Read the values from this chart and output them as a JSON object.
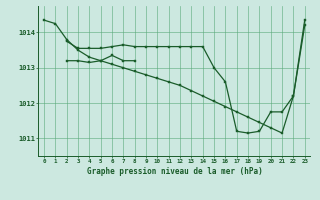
{
  "bg_color": "#cce8e0",
  "grid_color": "#5aaa7a",
  "line_color": "#1a5c2a",
  "xlabel": "Graphe pression niveau de la mer (hPa)",
  "ylim": [
    1010.5,
    1014.75
  ],
  "xlim": [
    -0.5,
    23.5
  ],
  "yticks": [
    1011,
    1012,
    1013,
    1014
  ],
  "xticks": [
    0,
    1,
    2,
    3,
    4,
    5,
    6,
    7,
    8,
    9,
    10,
    11,
    12,
    13,
    14,
    15,
    16,
    17,
    18,
    19,
    20,
    21,
    22,
    23
  ],
  "line1_x": [
    0,
    1,
    2,
    3,
    4,
    5,
    6,
    7,
    8,
    9,
    10,
    11,
    12,
    13,
    14,
    15,
    16,
    17,
    18,
    19,
    20,
    21,
    22,
    23
  ],
  "line1_y": [
    1014.35,
    1014.25,
    1013.8,
    1013.5,
    1013.3,
    1013.2,
    1013.1,
    1013.0,
    1012.9,
    1012.8,
    1012.7,
    1012.6,
    1012.5,
    1012.35,
    1012.2,
    1012.05,
    1011.9,
    1011.75,
    1011.6,
    1011.45,
    1011.3,
    1011.15,
    1012.2,
    1014.35
  ],
  "line2_x": [
    2,
    3,
    4,
    5,
    6,
    7,
    8,
    9,
    10,
    11,
    12,
    13,
    14,
    15,
    16,
    17,
    18,
    19,
    20,
    21,
    22,
    23
  ],
  "line2_y": [
    1013.75,
    1013.55,
    1013.55,
    1013.55,
    1013.6,
    1013.65,
    1013.6,
    1013.6,
    1013.6,
    1013.6,
    1013.6,
    1013.6,
    1013.6,
    1013.0,
    1012.6,
    1011.2,
    1011.15,
    1011.2,
    1011.75,
    1011.75,
    1012.2,
    1014.2
  ],
  "line3_x": [
    2,
    3,
    4,
    5,
    6,
    7,
    8
  ],
  "line3_y": [
    1013.2,
    1013.2,
    1013.15,
    1013.2,
    1013.35,
    1013.2,
    1013.2
  ]
}
